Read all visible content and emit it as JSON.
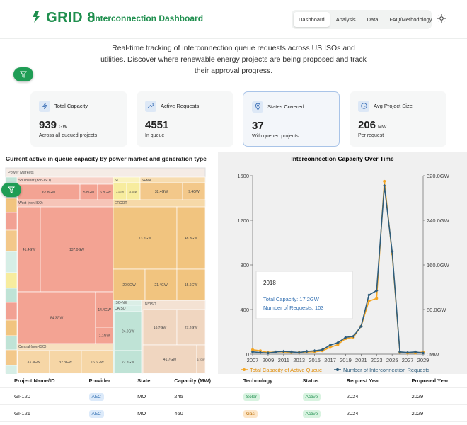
{
  "header": {
    "logo": "GRID 8",
    "title": "Interconnection Dashboard",
    "nav": [
      "Dashboard",
      "Analysis",
      "Data",
      "FAQ/Methodology"
    ]
  },
  "intro": "Real-time tracking of interconnection queue requests across US ISOs and utilities. Discover where renewable energy projects are being proposed and track their approval progress.",
  "stats": [
    {
      "label": "Total Capacity",
      "value": 939,
      "unit": "GW",
      "note": "Across all queued projects"
    },
    {
      "label": "Active Requests",
      "value": 4551,
      "note": "In queue"
    },
    {
      "label": "States Covered",
      "value": 37,
      "note": "With queued projects"
    },
    {
      "label": "Avg Project Size",
      "value": 206,
      "unit": "MW",
      "note": "Per request"
    }
  ],
  "treemap": {
    "title": "Current active in queue capacity by power market and generation type",
    "root": "Power Markets",
    "groups": [
      "Southeast (non-ISO)",
      "West (non-ISO)",
      "Central (non-ISO)",
      "SI",
      "SEMA",
      "ERCOT",
      "ISO-NE",
      "CAISO",
      "NYISO"
    ],
    "tiles": [
      "67.8GW",
      "5.8GW",
      "6.8GW",
      "41.4GW",
      "137.0GW",
      "84.3GW",
      "14.4GW",
      "1.1GW",
      "33.3GW",
      "32.3GW",
      "16.6GW",
      "7.1GW",
      "3.6GW",
      "32.4GW",
      "9.4GW",
      "73.7GW",
      "48.8GW",
      "20.9GW",
      "21.4GW",
      "15.6GW",
      "24.0GW",
      "22.7GW",
      "16.7GW",
      "27.2GW",
      "41.7GW",
      "6.7GW"
    ]
  },
  "line_chart": {
    "type": "line",
    "title": "Interconnection Capacity Over Time",
    "x": [
      2007,
      2008,
      2009,
      2010,
      2011,
      2012,
      2013,
      2014,
      2015,
      2016,
      2017,
      2018,
      2019,
      2020,
      2021,
      2022,
      2023,
      2024,
      2025,
      2026,
      2027,
      2028,
      2029
    ],
    "xlim": [
      2007,
      2029
    ],
    "xticks": [
      2007,
      2009,
      2011,
      2013,
      2015,
      2017,
      2019,
      2021,
      2023,
      2025,
      2027,
      2029
    ],
    "ylim": [
      0,
      1600
    ],
    "yticks": [
      0,
      400,
      800,
      1200,
      1600
    ],
    "y2lim": [
      0,
      320
    ],
    "y2ticks": [
      {
        "value": 0,
        "label": "0MW"
      },
      {
        "value": 80,
        "label": "80.0GW"
      },
      {
        "value": 160,
        "label": "160.0GW"
      },
      {
        "value": 240,
        "label": "240.0GW"
      },
      {
        "value": 320,
        "label": "320.0GW"
      }
    ],
    "series": [
      {
        "name": "Total Capacity of Active Queue",
        "color": "#f5a623",
        "axis": "y2",
        "values": [
          8,
          6,
          3,
          4,
          4,
          3,
          3,
          4,
          4,
          6,
          12,
          17.2,
          28,
          30,
          50,
          95,
          100,
          310,
          180,
          3,
          2,
          2,
          4
        ]
      },
      {
        "name": "Number of Interconnection Requests",
        "color": "#2f5d7c",
        "values": [
          20,
          15,
          10,
          20,
          25,
          20,
          15,
          25,
          30,
          40,
          80,
          103,
          150,
          160,
          250,
          530,
          570,
          1510,
          920,
          20,
          15,
          20,
          10
        ]
      }
    ],
    "tooltip": {
      "title": "2018",
      "lines": [
        "Total Capacity: 17.2GW",
        "Number of Requests: 103"
      ]
    }
  },
  "table": {
    "columns": [
      "Project Name/ID",
      "Provider",
      "State",
      "Capacity (MW)",
      "Technology",
      "Status",
      "Request Year",
      "Proposed Year"
    ],
    "rows": [
      [
        "GI-120",
        "AEC",
        "MO",
        245,
        "Solar",
        "Active",
        2024,
        2029
      ],
      [
        "GI-121",
        "AEC",
        "MO",
        460,
        "Gas",
        "Active",
        2024,
        2029
      ]
    ]
  }
}
